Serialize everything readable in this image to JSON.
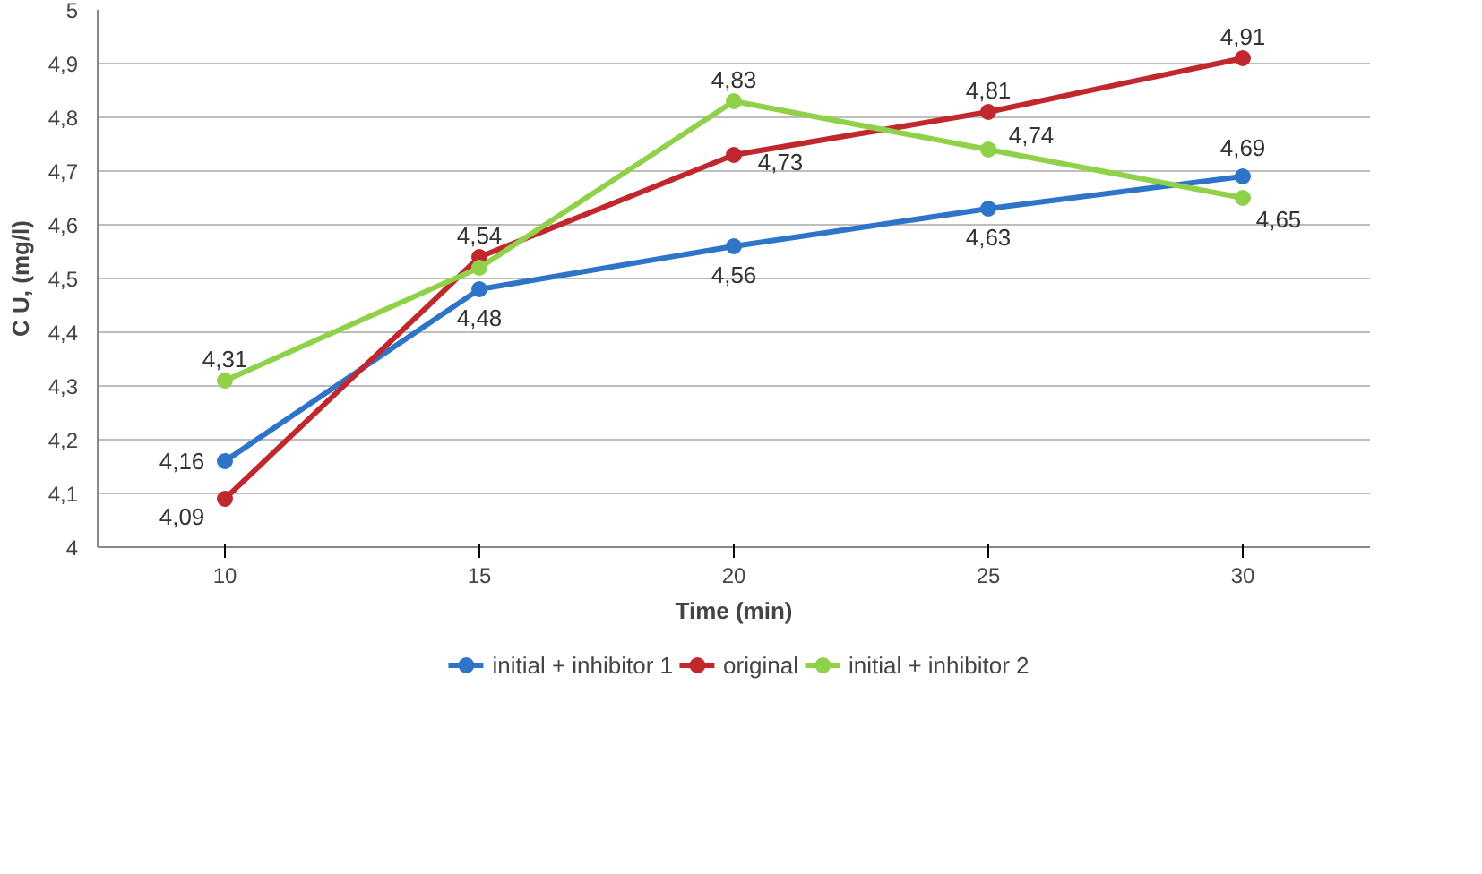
{
  "chart_data": {
    "type": "line",
    "xlabel": "Time (min)",
    "ylabel": "C U, (mg/l)",
    "categories": [
      "10",
      "15",
      "20",
      "25",
      "30"
    ],
    "series": [
      {
        "name": "initial + inhibitor 1",
        "color": "#2e75c9",
        "values": [
          4.16,
          4.48,
          4.56,
          4.63,
          4.69
        ],
        "value_labels": [
          "4,16",
          "4,48",
          "4,56",
          "4,63",
          "4,69"
        ]
      },
      {
        "name": "original",
        "color": "#c0282d",
        "values": [
          4.09,
          4.54,
          4.73,
          4.81,
          4.91
        ],
        "value_labels": [
          "4,09",
          "4,54",
          "4,73",
          "4,81",
          "4,91"
        ]
      },
      {
        "name": "initial + inhibitor 2",
        "color": "#8fd24a",
        "values": [
          4.31,
          4.52,
          4.83,
          4.74,
          4.65
        ],
        "value_labels": [
          "4,31",
          null,
          "4,83",
          "4,74",
          "4,65"
        ]
      }
    ],
    "ylim": [
      4,
      5
    ],
    "yticks": [
      {
        "value": 4,
        "label": "4"
      },
      {
        "value": 4.1,
        "label": "4,1"
      },
      {
        "value": 4.2,
        "label": "4,2"
      },
      {
        "value": 4.3,
        "label": "4,3"
      },
      {
        "value": 4.4,
        "label": "4,4"
      },
      {
        "value": 4.5,
        "label": "4,5"
      },
      {
        "value": 4.6,
        "label": "4,6"
      },
      {
        "value": 4.7,
        "label": "4,7"
      },
      {
        "value": 4.8,
        "label": "4,8"
      },
      {
        "value": 4.9,
        "label": "4,9"
      },
      {
        "value": 5,
        "label": "5"
      }
    ],
    "grid": "y",
    "legend": "bottom",
    "marker": "circle",
    "line_style": "solid"
  }
}
